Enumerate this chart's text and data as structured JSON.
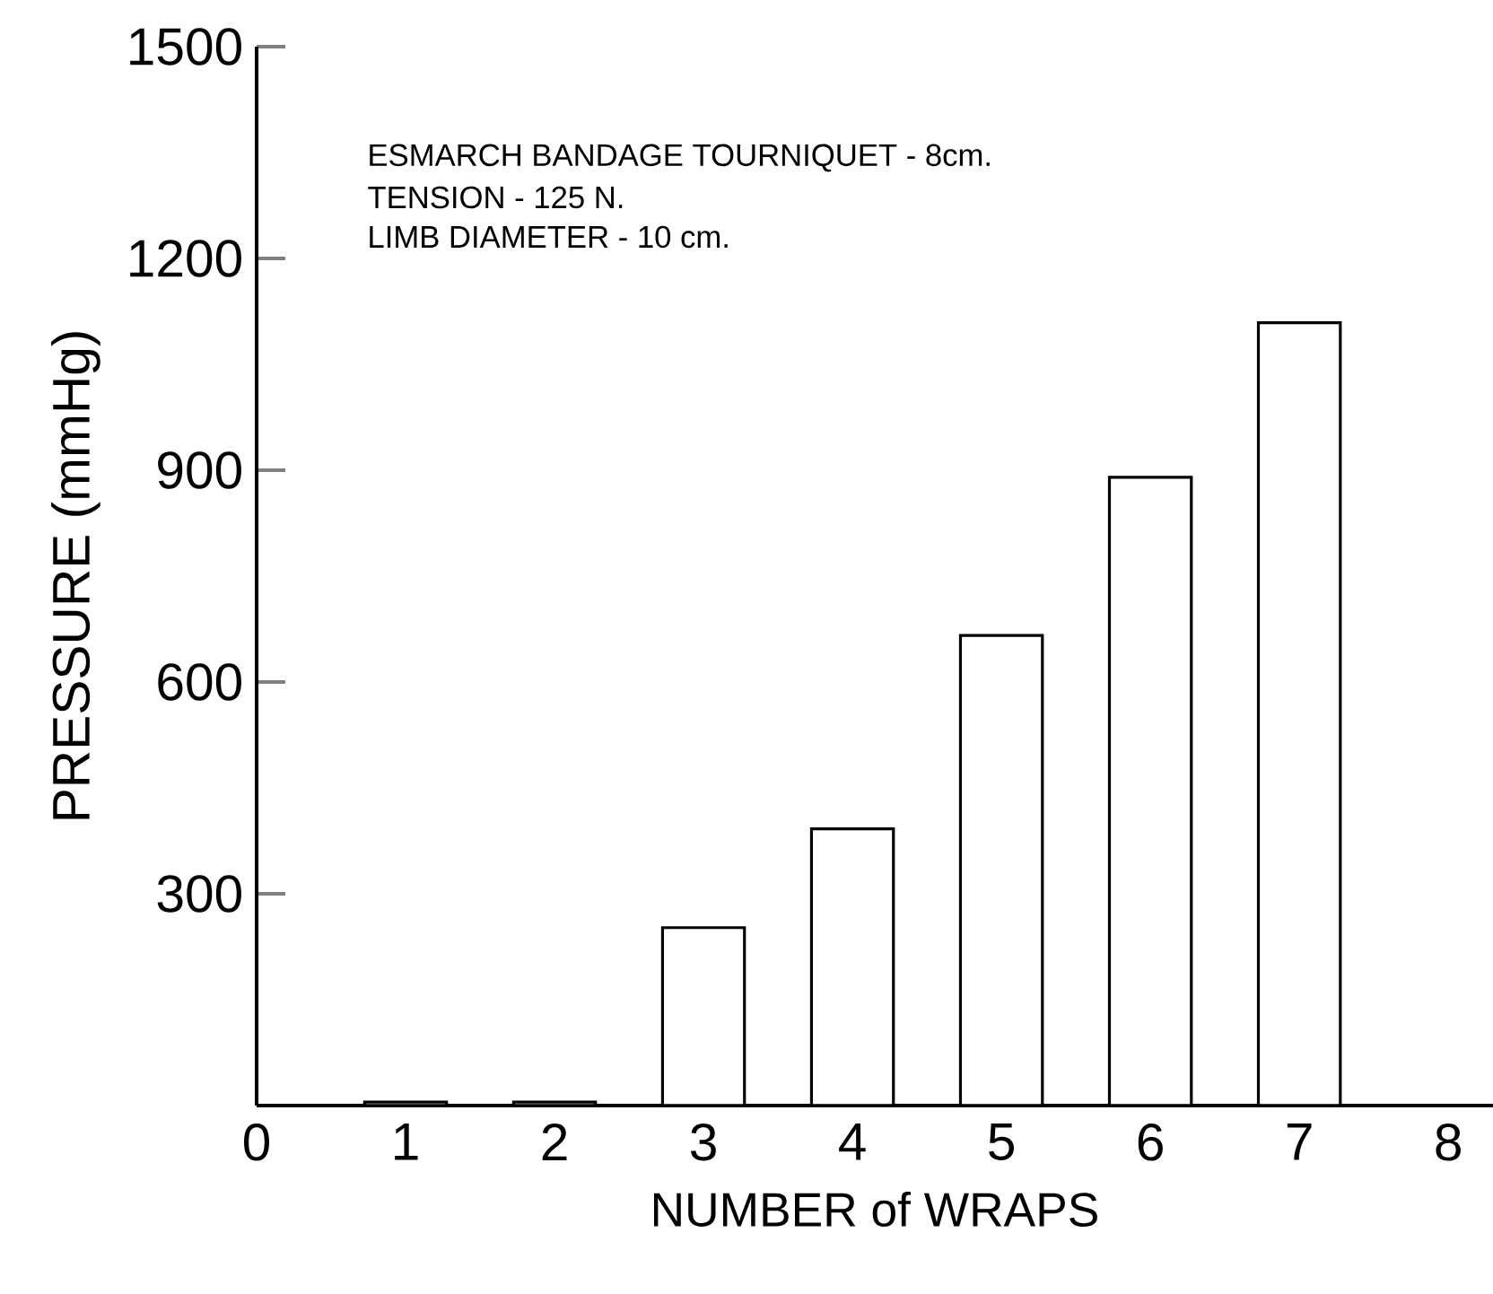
{
  "chart_data": {
    "type": "bar",
    "xlabel": "NUMBER of WRAPS",
    "ylabel": "PRESSURE  (mmHg)",
    "annotations": [
      "ESMARCH BANDAGE TOURNIQUET  - 8cm.",
      "TENSION  - 125 N.",
      "LIMB DIAMETER  -  10 cm."
    ],
    "x": [
      1,
      2,
      3,
      4,
      5,
      6,
      7
    ],
    "values": [
      5,
      5,
      252,
      392,
      666,
      890,
      1109
    ],
    "color": "#ffffff",
    "xlim": [
      0,
      8.3
    ],
    "xticks": [
      0,
      1,
      2,
      3,
      4,
      5,
      6,
      7,
      8
    ],
    "ylim": [
      0,
      1500
    ],
    "yticks": [
      300,
      600,
      900,
      1200,
      1500
    ]
  }
}
